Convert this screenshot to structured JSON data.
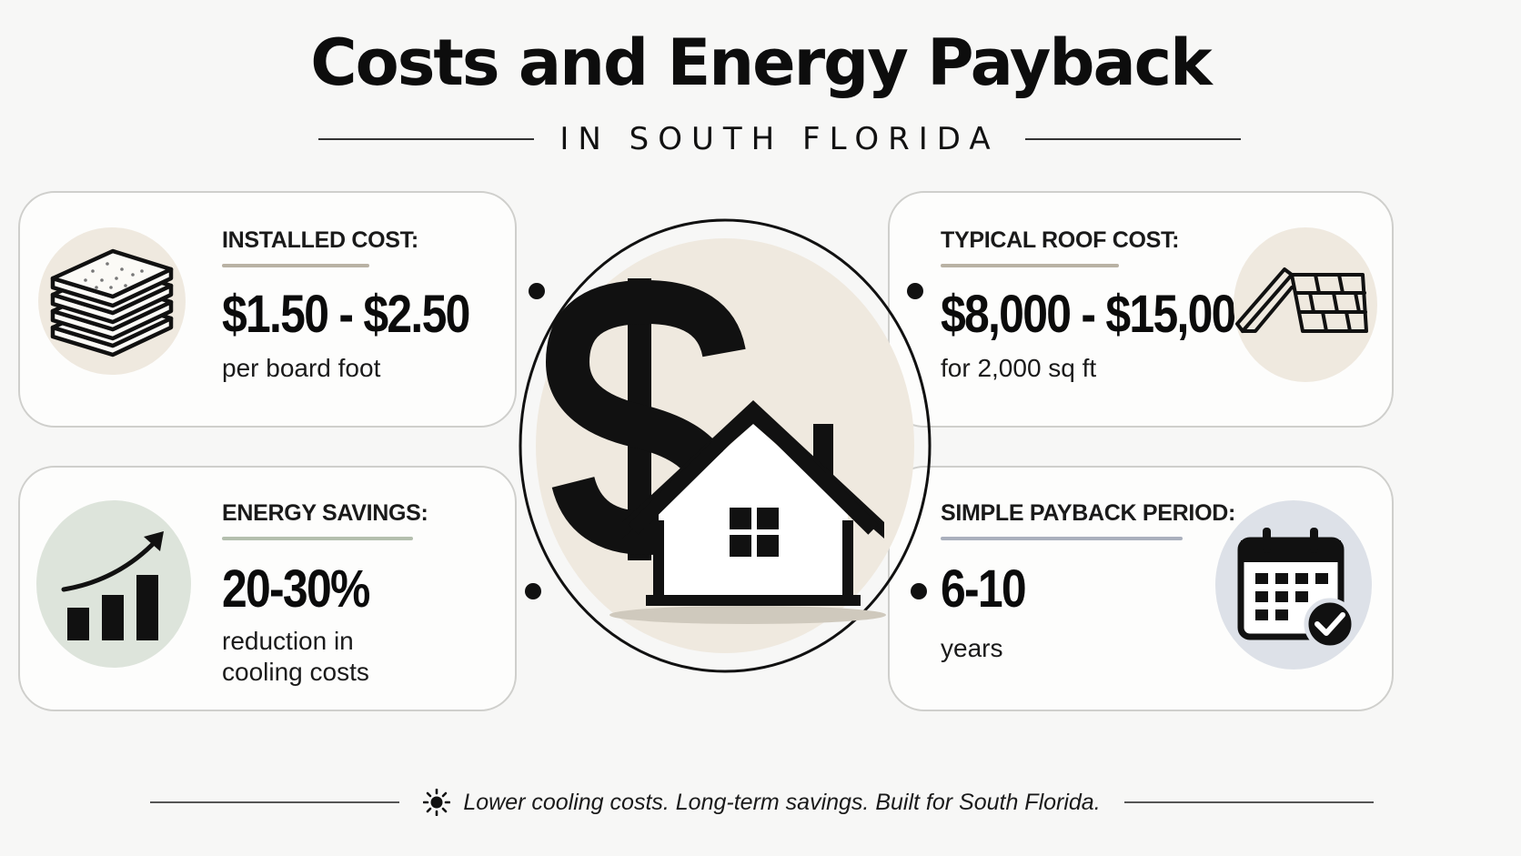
{
  "header": {
    "title": "Costs and Energy Payback",
    "subtitle": "IN SOUTH FLORIDA"
  },
  "cards": {
    "installed_cost": {
      "label": "INSTALLED COST:",
      "value": "$1.50 - $2.50",
      "description": "per board foot",
      "icon": "foam-boards-stack-icon",
      "accent": "#b9b2a4",
      "icon_bg": "#efe9df"
    },
    "energy_savings": {
      "label": "ENERGY SAVINGS:",
      "value": "20-30%",
      "description_line1": "reduction in",
      "description_line2": "cooling costs",
      "icon": "growth-bar-chart-icon",
      "accent": "#b4bfae",
      "icon_bg": "#dde4db"
    },
    "roof_cost": {
      "label": "TYPICAL ROOF COST:",
      "value": "$8,000 - $15,000",
      "description": "for 2,000 sq ft",
      "icon": "roof-shingles-icon",
      "accent": "#b9b2a4",
      "icon_bg": "#efe9df"
    },
    "payback_period": {
      "label": "SIMPLE PAYBACK PERIOD:",
      "value": "6-10",
      "description": "years",
      "icon": "calendar-check-icon",
      "accent": "#aab0bd",
      "icon_bg": "#dde1e8"
    }
  },
  "center": {
    "icon": "dollar-house-icon",
    "circle_bg": "#efe9df"
  },
  "footer": {
    "icon": "sun-icon",
    "text": "Lower cooling costs. Long-term savings. Built for South Florida."
  }
}
